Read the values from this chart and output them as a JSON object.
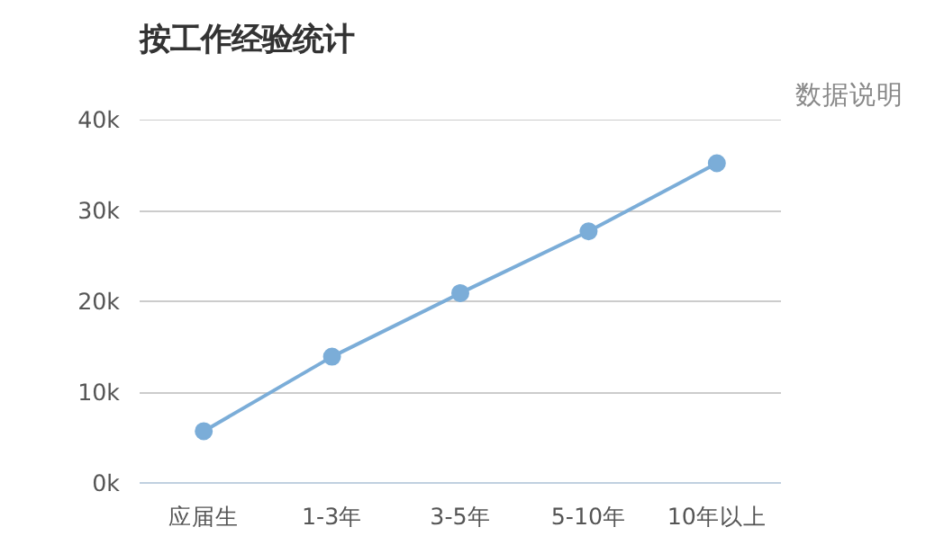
{
  "chart_data": {
    "type": "line",
    "title": "按工作经验统计",
    "annotations": [
      "数据说明"
    ],
    "categories": [
      "应届生",
      "1-3年",
      "3-5年",
      "5-10年",
      "10年以上"
    ],
    "series": [
      {
        "color": "#7badd8",
        "values": [
          5700,
          13900,
          20900,
          27700,
          35200
        ]
      }
    ],
    "ylim": [
      0,
      40000
    ],
    "yticks": [
      {
        "value": 0,
        "label": "0k"
      },
      {
        "value": 10000,
        "label": "10k"
      },
      {
        "value": 20000,
        "label": "20k"
      },
      {
        "value": 30000,
        "label": "30k"
      },
      {
        "value": 40000,
        "label": "40k"
      }
    ],
    "grid": "y",
    "marker": "circle"
  }
}
